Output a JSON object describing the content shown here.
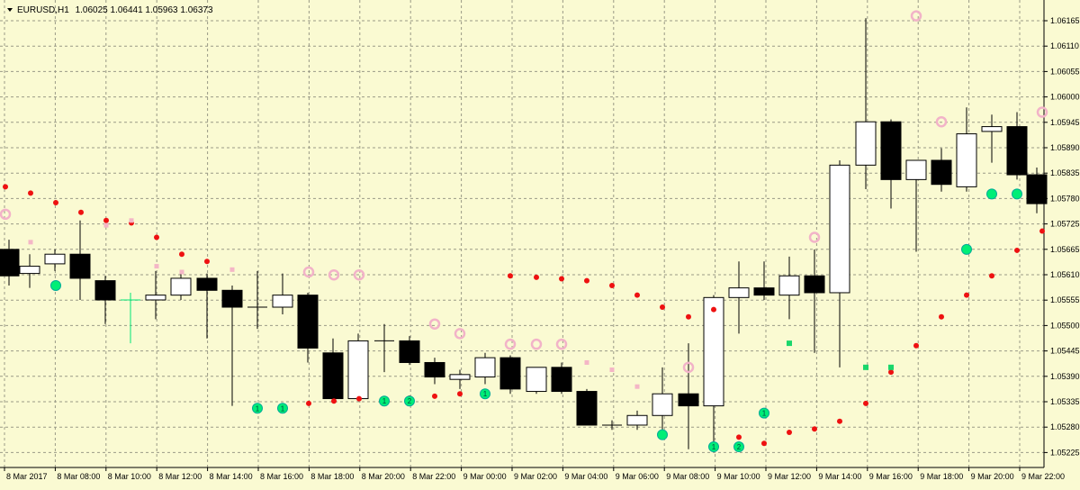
{
  "header": {
    "symbol": "EURUSD,H1",
    "ohlc": "1.06025 1.06441 1.05963 1.06373",
    "menu_icon": "triangle-down-icon"
  },
  "colors": {
    "background": "#fafad2",
    "grid": "#9a9a86",
    "axis": "#000000",
    "bull_body": "#ffffff",
    "bear_body": "#000000",
    "wick": "#000000",
    "last_bar": "#00e676",
    "dot_red": "#ee1111",
    "dot_pink": "#f4b6c6",
    "ring_pink": "#f2b3c8",
    "ring_green": "#00ee76",
    "square_green": "#1ad66b"
  },
  "chart_data": {
    "type": "candlestick",
    "y_ticks": [
      "1.06165",
      "1.06110",
      "1.06055",
      "1.06000",
      "1.05945",
      "1.05890",
      "1.05835",
      "1.05780",
      "1.05725",
      "1.05665",
      "1.05610",
      "1.05555",
      "1.05500",
      "1.05445",
      "1.05390",
      "1.05335",
      "1.05280",
      "1.05225"
    ],
    "ylim": [
      1.05212,
      1.06183
    ],
    "x_ticks": [
      "8 Mar 2017",
      "8 Mar 08:00",
      "8 Mar 10:00",
      "8 Mar 12:00",
      "8 Mar 14:00",
      "8 Mar 16:00",
      "8 Mar 18:00",
      "8 Mar 20:00",
      "8 Mar 22:00",
      "9 Mar 00:00",
      "9 Mar 02:00",
      "9 Mar 04:00",
      "9 Mar 06:00",
      "9 Mar 08:00",
      "9 Mar 10:00",
      "9 Mar 12:00",
      "9 Mar 14:00",
      "9 Mar 16:00",
      "9 Mar 18:00",
      "9 Mar 20:00",
      "9 Mar 22:00"
    ],
    "candles": [
      {
        "x": 10,
        "o": 1.05665,
        "h": 1.05685,
        "l": 1.0559,
        "c": 1.0561
      },
      {
        "x": 33,
        "o": 1.05615,
        "h": 1.05655,
        "l": 1.05585,
        "c": 1.0563
      },
      {
        "x": 61,
        "o": 1.05635,
        "h": 1.05665,
        "l": 1.0562,
        "c": 1.05655
      },
      {
        "x": 89,
        "o": 1.05655,
        "h": 1.05725,
        "l": 1.0556,
        "c": 1.05605
      },
      {
        "x": 117,
        "o": 1.056,
        "h": 1.0561,
        "l": 1.0551,
        "c": 1.0556
      },
      {
        "x": 145,
        "o": 1.0556,
        "h": 1.05575,
        "l": 1.0547,
        "c": 1.0556
      },
      {
        "x": 173,
        "o": 1.0556,
        "h": 1.0562,
        "l": 1.0552,
        "c": 1.0557
      },
      {
        "x": 201,
        "o": 1.0557,
        "h": 1.05615,
        "l": 1.0556,
        "c": 1.05605
      },
      {
        "x": 230,
        "o": 1.05605,
        "h": 1.05615,
        "l": 1.0548,
        "c": 1.0558
      },
      {
        "x": 258,
        "o": 1.0558,
        "h": 1.0559,
        "l": 1.0534,
        "c": 1.05545
      },
      {
        "x": 286,
        "o": 1.05545,
        "h": 1.0562,
        "l": 1.055,
        "c": 1.05545
      },
      {
        "x": 314,
        "o": 1.05545,
        "h": 1.05615,
        "l": 1.0553,
        "c": 1.0557
      },
      {
        "x": 342,
        "o": 1.0557,
        "h": 1.05575,
        "l": 1.0543,
        "c": 1.0546
      },
      {
        "x": 370,
        "o": 1.0545,
        "h": 1.0548,
        "l": 1.05355,
        "c": 1.05355
      },
      {
        "x": 398,
        "o": 1.05355,
        "h": 1.0549,
        "l": 1.0535,
        "c": 1.05475
      },
      {
        "x": 427,
        "o": 1.05475,
        "h": 1.0551,
        "l": 1.0541,
        "c": 1.05475
      },
      {
        "x": 455,
        "o": 1.05475,
        "h": 1.05485,
        "l": 1.05425,
        "c": 1.0543
      },
      {
        "x": 483,
        "o": 1.0543,
        "h": 1.0544,
        "l": 1.05385,
        "c": 1.054
      },
      {
        "x": 511,
        "o": 1.05395,
        "h": 1.05415,
        "l": 1.05375,
        "c": 1.05405
      },
      {
        "x": 539,
        "o": 1.054,
        "h": 1.0545,
        "l": 1.05385,
        "c": 1.0544
      },
      {
        "x": 567,
        "o": 1.0544,
        "h": 1.05445,
        "l": 1.05365,
        "c": 1.05375
      },
      {
        "x": 596,
        "o": 1.0537,
        "h": 1.0542,
        "l": 1.05365,
        "c": 1.0542
      },
      {
        "x": 624,
        "o": 1.0542,
        "h": 1.0543,
        "l": 1.05365,
        "c": 1.0537
      },
      {
        "x": 652,
        "o": 1.0537,
        "h": 1.05375,
        "l": 1.053,
        "c": 1.053
      },
      {
        "x": 680,
        "o": 1.053,
        "h": 1.0531,
        "l": 1.0529,
        "c": 1.053
      },
      {
        "x": 708,
        "o": 1.053,
        "h": 1.0533,
        "l": 1.0529,
        "c": 1.0532
      },
      {
        "x": 736,
        "o": 1.0532,
        "h": 1.0542,
        "l": 1.0528,
        "c": 1.05365
      },
      {
        "x": 765,
        "o": 1.05365,
        "h": 1.0547,
        "l": 1.0525,
        "c": 1.0534
      },
      {
        "x": 793,
        "o": 1.0534,
        "h": 1.0557,
        "l": 1.0526,
        "c": 1.05565
      },
      {
        "x": 821,
        "o": 1.05565,
        "h": 1.0564,
        "l": 1.0549,
        "c": 1.05585
      },
      {
        "x": 849,
        "o": 1.05585,
        "h": 1.0564,
        "l": 1.0556,
        "c": 1.0557
      },
      {
        "x": 877,
        "o": 1.0557,
        "h": 1.0565,
        "l": 1.0552,
        "c": 1.0561
      },
      {
        "x": 905,
        "o": 1.0561,
        "h": 1.05665,
        "l": 1.0545,
        "c": 1.05575
      },
      {
        "x": 933,
        "o": 1.05575,
        "h": 1.0585,
        "l": 1.0542,
        "c": 1.0584
      },
      {
        "x": 962,
        "o": 1.0584,
        "h": 1.06145,
        "l": 1.0579,
        "c": 1.0593
      },
      {
        "x": 990,
        "o": 1.0593,
        "h": 1.05935,
        "l": 1.0575,
        "c": 1.0581
      },
      {
        "x": 1018,
        "o": 1.0581,
        "h": 1.0585,
        "l": 1.0566,
        "c": 1.0585
      },
      {
        "x": 1046,
        "o": 1.0585,
        "h": 1.05875,
        "l": 1.05785,
        "c": 1.058
      },
      {
        "x": 1074,
        "o": 1.05795,
        "h": 1.0596,
        "l": 1.05785,
        "c": 1.05905
      },
      {
        "x": 1102,
        "o": 1.0591,
        "h": 1.05945,
        "l": 1.05845,
        "c": 1.0592
      },
      {
        "x": 1130,
        "o": 1.0592,
        "h": 1.0595,
        "l": 1.0581,
        "c": 1.0582
      },
      {
        "x": 1152,
        "o": 1.0582,
        "h": 1.05835,
        "l": 1.0574,
        "c": 1.0576
      }
    ],
    "red_dots": [
      [
        6,
        1.05795
      ],
      [
        34,
        1.05782
      ],
      [
        62,
        1.05762
      ],
      [
        90,
        1.05742
      ],
      [
        118,
        1.05725
      ],
      [
        146,
        1.0572
      ],
      [
        174,
        1.0569
      ],
      [
        202,
        1.05655
      ],
      [
        230,
        1.0564
      ],
      [
        343,
        1.05345
      ],
      [
        371,
        1.0535
      ],
      [
        399,
        1.05355
      ],
      [
        427,
        1.05348
      ],
      [
        455,
        1.05356
      ],
      [
        483,
        1.0536
      ],
      [
        511,
        1.05365
      ],
      [
        567,
        1.0561
      ],
      [
        596,
        1.05607
      ],
      [
        624,
        1.05604
      ],
      [
        652,
        1.056
      ],
      [
        680,
        1.0559
      ],
      [
        708,
        1.0557
      ],
      [
        736,
        1.05545
      ],
      [
        765,
        1.05525
      ],
      [
        793,
        1.0554
      ],
      [
        821,
        1.05275
      ],
      [
        849,
        1.05262
      ],
      [
        877,
        1.05285
      ],
      [
        905,
        1.05292
      ],
      [
        933,
        1.05308
      ],
      [
        962,
        1.05345
      ],
      [
        990,
        1.0541
      ],
      [
        1018,
        1.05465
      ],
      [
        1046,
        1.05525
      ],
      [
        1074,
        1.0557
      ],
      [
        1102,
        1.0561
      ],
      [
        1130,
        1.05663
      ],
      [
        1158,
        1.05703
      ]
    ],
    "pink_dots": [
      [
        34,
        1.0568
      ],
      [
        118,
        1.05715
      ],
      [
        146,
        1.05725
      ],
      [
        174,
        1.0563
      ],
      [
        202,
        1.05618
      ],
      [
        258,
        1.05623
      ],
      [
        652,
        1.0543
      ],
      [
        680,
        1.05415
      ],
      [
        708,
        1.0538
      ]
    ],
    "pink_rings": [
      [
        6,
        1.05738
      ],
      [
        343,
        1.05618
      ],
      [
        371,
        1.05612
      ],
      [
        399,
        1.05612
      ],
      [
        483,
        1.0551
      ],
      [
        511,
        1.0549
      ],
      [
        567,
        1.05468
      ],
      [
        596,
        1.05468
      ],
      [
        624,
        1.05468
      ],
      [
        765,
        1.0542
      ],
      [
        905,
        1.0569
      ],
      [
        1018,
        1.0615
      ],
      [
        1046,
        1.0593
      ],
      [
        1158,
        1.0595
      ]
    ],
    "green_rings": [
      [
        62,
        1.0559
      ],
      [
        286,
        1.05335
      ],
      [
        314,
        1.05335
      ],
      [
        427,
        1.0535
      ],
      [
        455,
        1.0535
      ],
      [
        539,
        1.05365
      ],
      [
        736,
        1.0528
      ],
      [
        793,
        1.05255
      ],
      [
        821,
        1.05255
      ],
      [
        849,
        1.05325
      ],
      [
        1074,
        1.05665
      ],
      [
        1102,
        1.0578
      ],
      [
        1130,
        1.0578
      ]
    ],
    "green_ring_labels": [
      "",
      "1",
      "1",
      "1",
      "2",
      "1",
      "",
      "1",
      "2",
      "1",
      "",
      "",
      ""
    ],
    "green_squares": [
      [
        877,
        1.0547
      ],
      [
        962,
        1.0542
      ],
      [
        990,
        1.0542
      ]
    ]
  }
}
